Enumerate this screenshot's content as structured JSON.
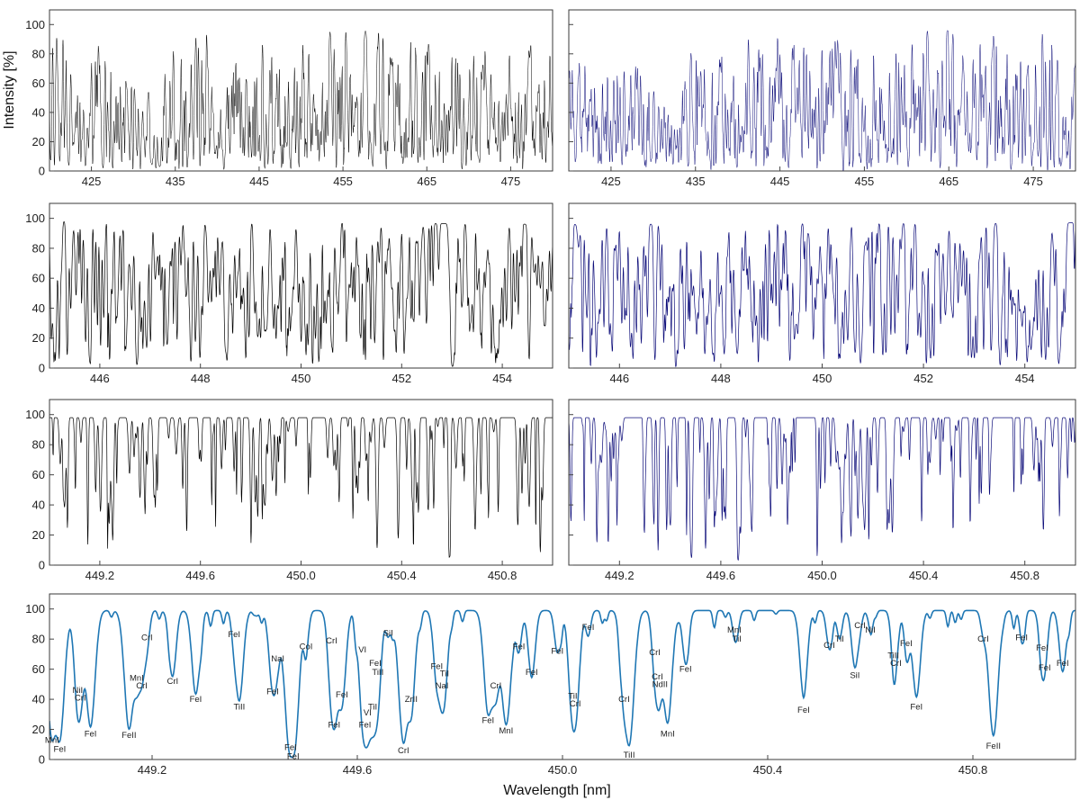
{
  "figure": {
    "ylabel": "Intensity [%]",
    "xlabel": "Wavelength [nm]"
  },
  "chart_data": [
    {
      "type": "line",
      "panel": "row1-left",
      "color": "#000000",
      "xlim": [
        420,
        480
      ],
      "ylim": [
        0,
        110
      ],
      "xticks": [
        "425",
        "435",
        "445",
        "455",
        "465",
        "475"
      ],
      "yticks": [
        "0",
        "20",
        "40",
        "60",
        "80",
        "100"
      ],
      "series": [
        {
          "x": [
            420,
            428,
            431,
            434,
            436,
            445,
            455,
            465,
            480
          ],
          "y": [
            95,
            88,
            45,
            80,
            98,
            98,
            96,
            95,
            93
          ]
        }
      ]
    },
    {
      "type": "line",
      "panel": "row1-right",
      "color": "#0a0a78",
      "xlim": [
        420,
        480
      ],
      "ylim": [
        0,
        110
      ],
      "xticks": [
        "425",
        "435",
        "445",
        "455",
        "465",
        "475"
      ],
      "yticks": [],
      "series": [
        {
          "x": [
            420,
            428,
            431,
            434,
            436,
            445,
            455,
            465,
            480
          ],
          "y": [
            92,
            85,
            45,
            78,
            92,
            95,
            97,
            96,
            95
          ]
        }
      ]
    },
    {
      "type": "line",
      "panel": "row2-left",
      "color": "#000000",
      "xlim": [
        445,
        455
      ],
      "ylim": [
        0,
        110
      ],
      "xticks": [
        "446",
        "448",
        "450",
        "452",
        "454"
      ],
      "yticks": [
        "0",
        "20",
        "40",
        "60",
        "80",
        "100"
      ],
      "series": [
        {
          "x": [
            445,
            455
          ],
          "y": [
            98,
            96
          ]
        }
      ]
    },
    {
      "type": "line",
      "panel": "row2-right",
      "color": "#0a0a78",
      "xlim": [
        445,
        455
      ],
      "ylim": [
        0,
        110
      ],
      "xticks": [
        "446",
        "448",
        "450",
        "452",
        "454"
      ],
      "yticks": [],
      "series": [
        {
          "x": [
            445,
            455
          ],
          "y": [
            96,
            97
          ]
        }
      ]
    },
    {
      "type": "line",
      "panel": "row3-left",
      "color": "#000000",
      "xlim": [
        449.0,
        451.0
      ],
      "ylim": [
        0,
        110
      ],
      "xticks": [
        "449.2",
        "449.6",
        "450.0",
        "450.4",
        "450.8"
      ],
      "yticks": [
        "0",
        "20",
        "40",
        "60",
        "80",
        "100"
      ],
      "series": [
        {
          "x": [
            449.0,
            451.0
          ],
          "y": [
            98,
            98
          ]
        }
      ]
    },
    {
      "type": "line",
      "panel": "row3-right",
      "color": "#0a0a78",
      "xlim": [
        449.0,
        451.0
      ],
      "ylim": [
        0,
        110
      ],
      "xticks": [
        "449.2",
        "449.6",
        "450.0",
        "450.4",
        "450.8"
      ],
      "yticks": [],
      "series": [
        {
          "x": [
            449.0,
            451.0
          ],
          "y": [
            98,
            98
          ]
        }
      ]
    },
    {
      "type": "line",
      "panel": "row4",
      "color": "#1f77b4",
      "xlim": [
        449.0,
        451.0
      ],
      "ylim": [
        0,
        110
      ],
      "xticks": [
        "449.2",
        "449.6",
        "450.0",
        "450.4",
        "450.8"
      ],
      "yticks": [
        "0",
        "20",
        "40",
        "60",
        "80",
        "100"
      ],
      "series": [
        {
          "x": [
            449.0,
            451.0
          ],
          "y": [
            99,
            99
          ]
        }
      ],
      "absorption_lines": [
        {
          "x": 449.005,
          "depth": 84,
          "label": "MnI",
          "y": 13
        },
        {
          "x": 449.02,
          "depth": 84,
          "label": "FeI",
          "y": 7
        },
        {
          "x": 449.055,
          "depth": 50,
          "label": "NiI",
          "y": 46
        },
        {
          "x": 449.06,
          "depth": 50,
          "label": "CrI",
          "y": 41
        },
        {
          "x": 449.08,
          "depth": 78,
          "label": "FeI",
          "y": 17
        },
        {
          "x": 449.155,
          "depth": 79,
          "label": "FeII",
          "y": 16
        },
        {
          "x": 449.17,
          "depth": 42,
          "label": "MnI",
          "y": 54
        },
        {
          "x": 449.18,
          "depth": 42,
          "label": "CrI",
          "y": 49
        },
        {
          "x": 449.19,
          "depth": 20,
          "label": "CrI",
          "y": 81
        },
        {
          "x": 449.24,
          "depth": 44,
          "label": "CrI",
          "y": 52
        },
        {
          "x": 449.285,
          "depth": 56,
          "label": "FeI",
          "y": 40
        },
        {
          "x": 449.36,
          "depth": 14,
          "label": "FeI",
          "y": 83
        },
        {
          "x": 449.37,
          "depth": 60,
          "label": "TiII",
          "y": 35
        },
        {
          "x": 449.435,
          "depth": 52,
          "label": "FeI",
          "y": 45
        },
        {
          "x": 449.445,
          "depth": 27,
          "label": "NaI",
          "y": 67
        },
        {
          "x": 449.47,
          "depth": 91,
          "label": "FeI",
          "y": 8
        },
        {
          "x": 449.475,
          "depth": 91,
          "label": "FeI",
          "y": 2
        },
        {
          "x": 449.5,
          "depth": 22,
          "label": "CoI",
          "y": 75
        },
        {
          "x": 449.55,
          "depth": 31,
          "label": "CrI",
          "y": 79
        },
        {
          "x": 449.555,
          "depth": 72,
          "label": "FeI",
          "y": 23
        },
        {
          "x": 449.57,
          "depth": 60,
          "label": "FeI",
          "y": 43
        },
        {
          "x": 449.61,
          "depth": 30,
          "label": "VI",
          "y": 73
        },
        {
          "x": 449.615,
          "depth": 74,
          "label": "FeI",
          "y": 23
        },
        {
          "x": 449.62,
          "depth": 67,
          "label": "VI",
          "y": 31
        },
        {
          "x": 449.63,
          "depth": 55,
          "label": "TiI",
          "y": 35
        },
        {
          "x": 449.635,
          "depth": 45,
          "label": "FeI",
          "y": 64
        },
        {
          "x": 449.64,
          "depth": 45,
          "label": "TiII",
          "y": 58
        },
        {
          "x": 449.66,
          "depth": 17,
          "label": "SiI",
          "y": 84
        },
        {
          "x": 449.69,
          "depth": 88,
          "label": "CrI",
          "y": 6
        },
        {
          "x": 449.705,
          "depth": 62,
          "label": "ZrII",
          "y": 40
        },
        {
          "x": 449.755,
          "depth": 44,
          "label": "FeI",
          "y": 62
        },
        {
          "x": 449.77,
          "depth": 42,
          "label": "TiI",
          "y": 57
        },
        {
          "x": 449.765,
          "depth": 47,
          "label": "NaI",
          "y": 49
        },
        {
          "x": 449.855,
          "depth": 68,
          "label": "FeI",
          "y": 26
        },
        {
          "x": 449.87,
          "depth": 55,
          "label": "CrI",
          "y": 49
        },
        {
          "x": 449.89,
          "depth": 76,
          "label": "MnI",
          "y": 19
        },
        {
          "x": 449.915,
          "depth": 26,
          "label": "FeI",
          "y": 75
        },
        {
          "x": 449.94,
          "depth": 45,
          "label": "FeI",
          "y": 58
        },
        {
          "x": 449.99,
          "depth": 28,
          "label": "FeI",
          "y": 72
        },
        {
          "x": 450.02,
          "depth": 60,
          "label": "TiI",
          "y": 42
        },
        {
          "x": 450.025,
          "depth": 60,
          "label": "CrI",
          "y": 37
        },
        {
          "x": 450.05,
          "depth": 17,
          "label": "FeI",
          "y": 88
        },
        {
          "x": 450.12,
          "depth": 46,
          "label": "CrI",
          "y": 40
        },
        {
          "x": 450.13,
          "depth": 89,
          "label": "TiII",
          "y": 3
        },
        {
          "x": 450.18,
          "depth": 30,
          "label": "CrI",
          "y": 71
        },
        {
          "x": 450.185,
          "depth": 35,
          "label": "CrI",
          "y": 55
        },
        {
          "x": 450.19,
          "depth": 38,
          "label": "NdII",
          "y": 50
        },
        {
          "x": 450.205,
          "depth": 75,
          "label": "MnI",
          "y": 17
        },
        {
          "x": 450.24,
          "depth": 35,
          "label": "FeI",
          "y": 60
        },
        {
          "x": 450.335,
          "depth": 13,
          "label": "MnI",
          "y": 86
        },
        {
          "x": 450.34,
          "depth": 13,
          "label": "TiI",
          "y": 80
        },
        {
          "x": 450.47,
          "depth": 55,
          "label": "FeI",
          "y": 33
        },
        {
          "x": 450.52,
          "depth": 25,
          "label": "CrI",
          "y": 76
        },
        {
          "x": 450.54,
          "depth": 19,
          "label": "TiI",
          "y": 80
        },
        {
          "x": 450.57,
          "depth": 38,
          "label": "SiI",
          "y": 56
        },
        {
          "x": 450.58,
          "depth": 8,
          "label": "CrI",
          "y": 89
        },
        {
          "x": 450.6,
          "depth": 10,
          "label": "NiI",
          "y": 86
        },
        {
          "x": 450.645,
          "depth": 22,
          "label": "TiII",
          "y": 69
        },
        {
          "x": 450.65,
          "depth": 27,
          "label": "CrI",
          "y": 64
        },
        {
          "x": 450.67,
          "depth": 19,
          "label": "FeI",
          "y": 77
        },
        {
          "x": 450.69,
          "depth": 58,
          "label": "FeI",
          "y": 35
        },
        {
          "x": 450.82,
          "depth": 13,
          "label": "CrI",
          "y": 80
        },
        {
          "x": 450.84,
          "depth": 84,
          "label": "FeII",
          "y": 9
        },
        {
          "x": 450.895,
          "depth": 12,
          "label": "FeI",
          "y": 81
        },
        {
          "x": 450.935,
          "depth": 29,
          "label": "FeI",
          "y": 74
        },
        {
          "x": 450.94,
          "depth": 30,
          "label": "FeI",
          "y": 61
        },
        {
          "x": 450.975,
          "depth": 41,
          "label": "FeI",
          "y": 64
        }
      ]
    }
  ]
}
